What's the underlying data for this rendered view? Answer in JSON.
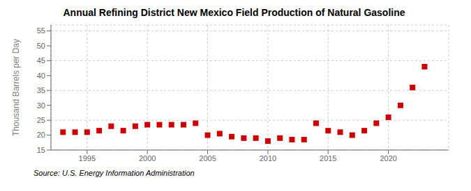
{
  "chart_data": {
    "type": "scatter",
    "title": "Annual Refining District New Mexico Field Production of Natural Gasoline",
    "ylabel": "Thousand Barrels per Day",
    "annotation": "Source: U.S. Energy Information Administration",
    "x": [
      1993,
      1994,
      1995,
      1996,
      1997,
      1998,
      1999,
      2000,
      2001,
      2002,
      2003,
      2004,
      2005,
      2006,
      2007,
      2008,
      2009,
      2010,
      2011,
      2012,
      2013,
      2014,
      2015,
      2016,
      2017,
      2018,
      2019,
      2020,
      2021,
      2022,
      2023
    ],
    "values": [
      21.0,
      21.0,
      21.0,
      21.5,
      23.0,
      21.5,
      23.0,
      23.5,
      23.5,
      23.5,
      23.5,
      24.0,
      20.0,
      20.5,
      19.5,
      19.0,
      19.0,
      18.0,
      19.0,
      18.5,
      18.5,
      24.0,
      21.5,
      21.0,
      20.0,
      21.5,
      24.0,
      26.0,
      30.0,
      36.0,
      43.0
    ],
    "color": "#cc0000",
    "marker": "square",
    "xlim": [
      1992,
      2025
    ],
    "xticks": [
      1995,
      2000,
      2005,
      2010,
      2015,
      2020
    ],
    "ylim": [
      15,
      57
    ],
    "yticks": [
      15,
      20,
      25,
      30,
      35,
      40,
      45,
      50,
      55
    ],
    "grid": true
  }
}
